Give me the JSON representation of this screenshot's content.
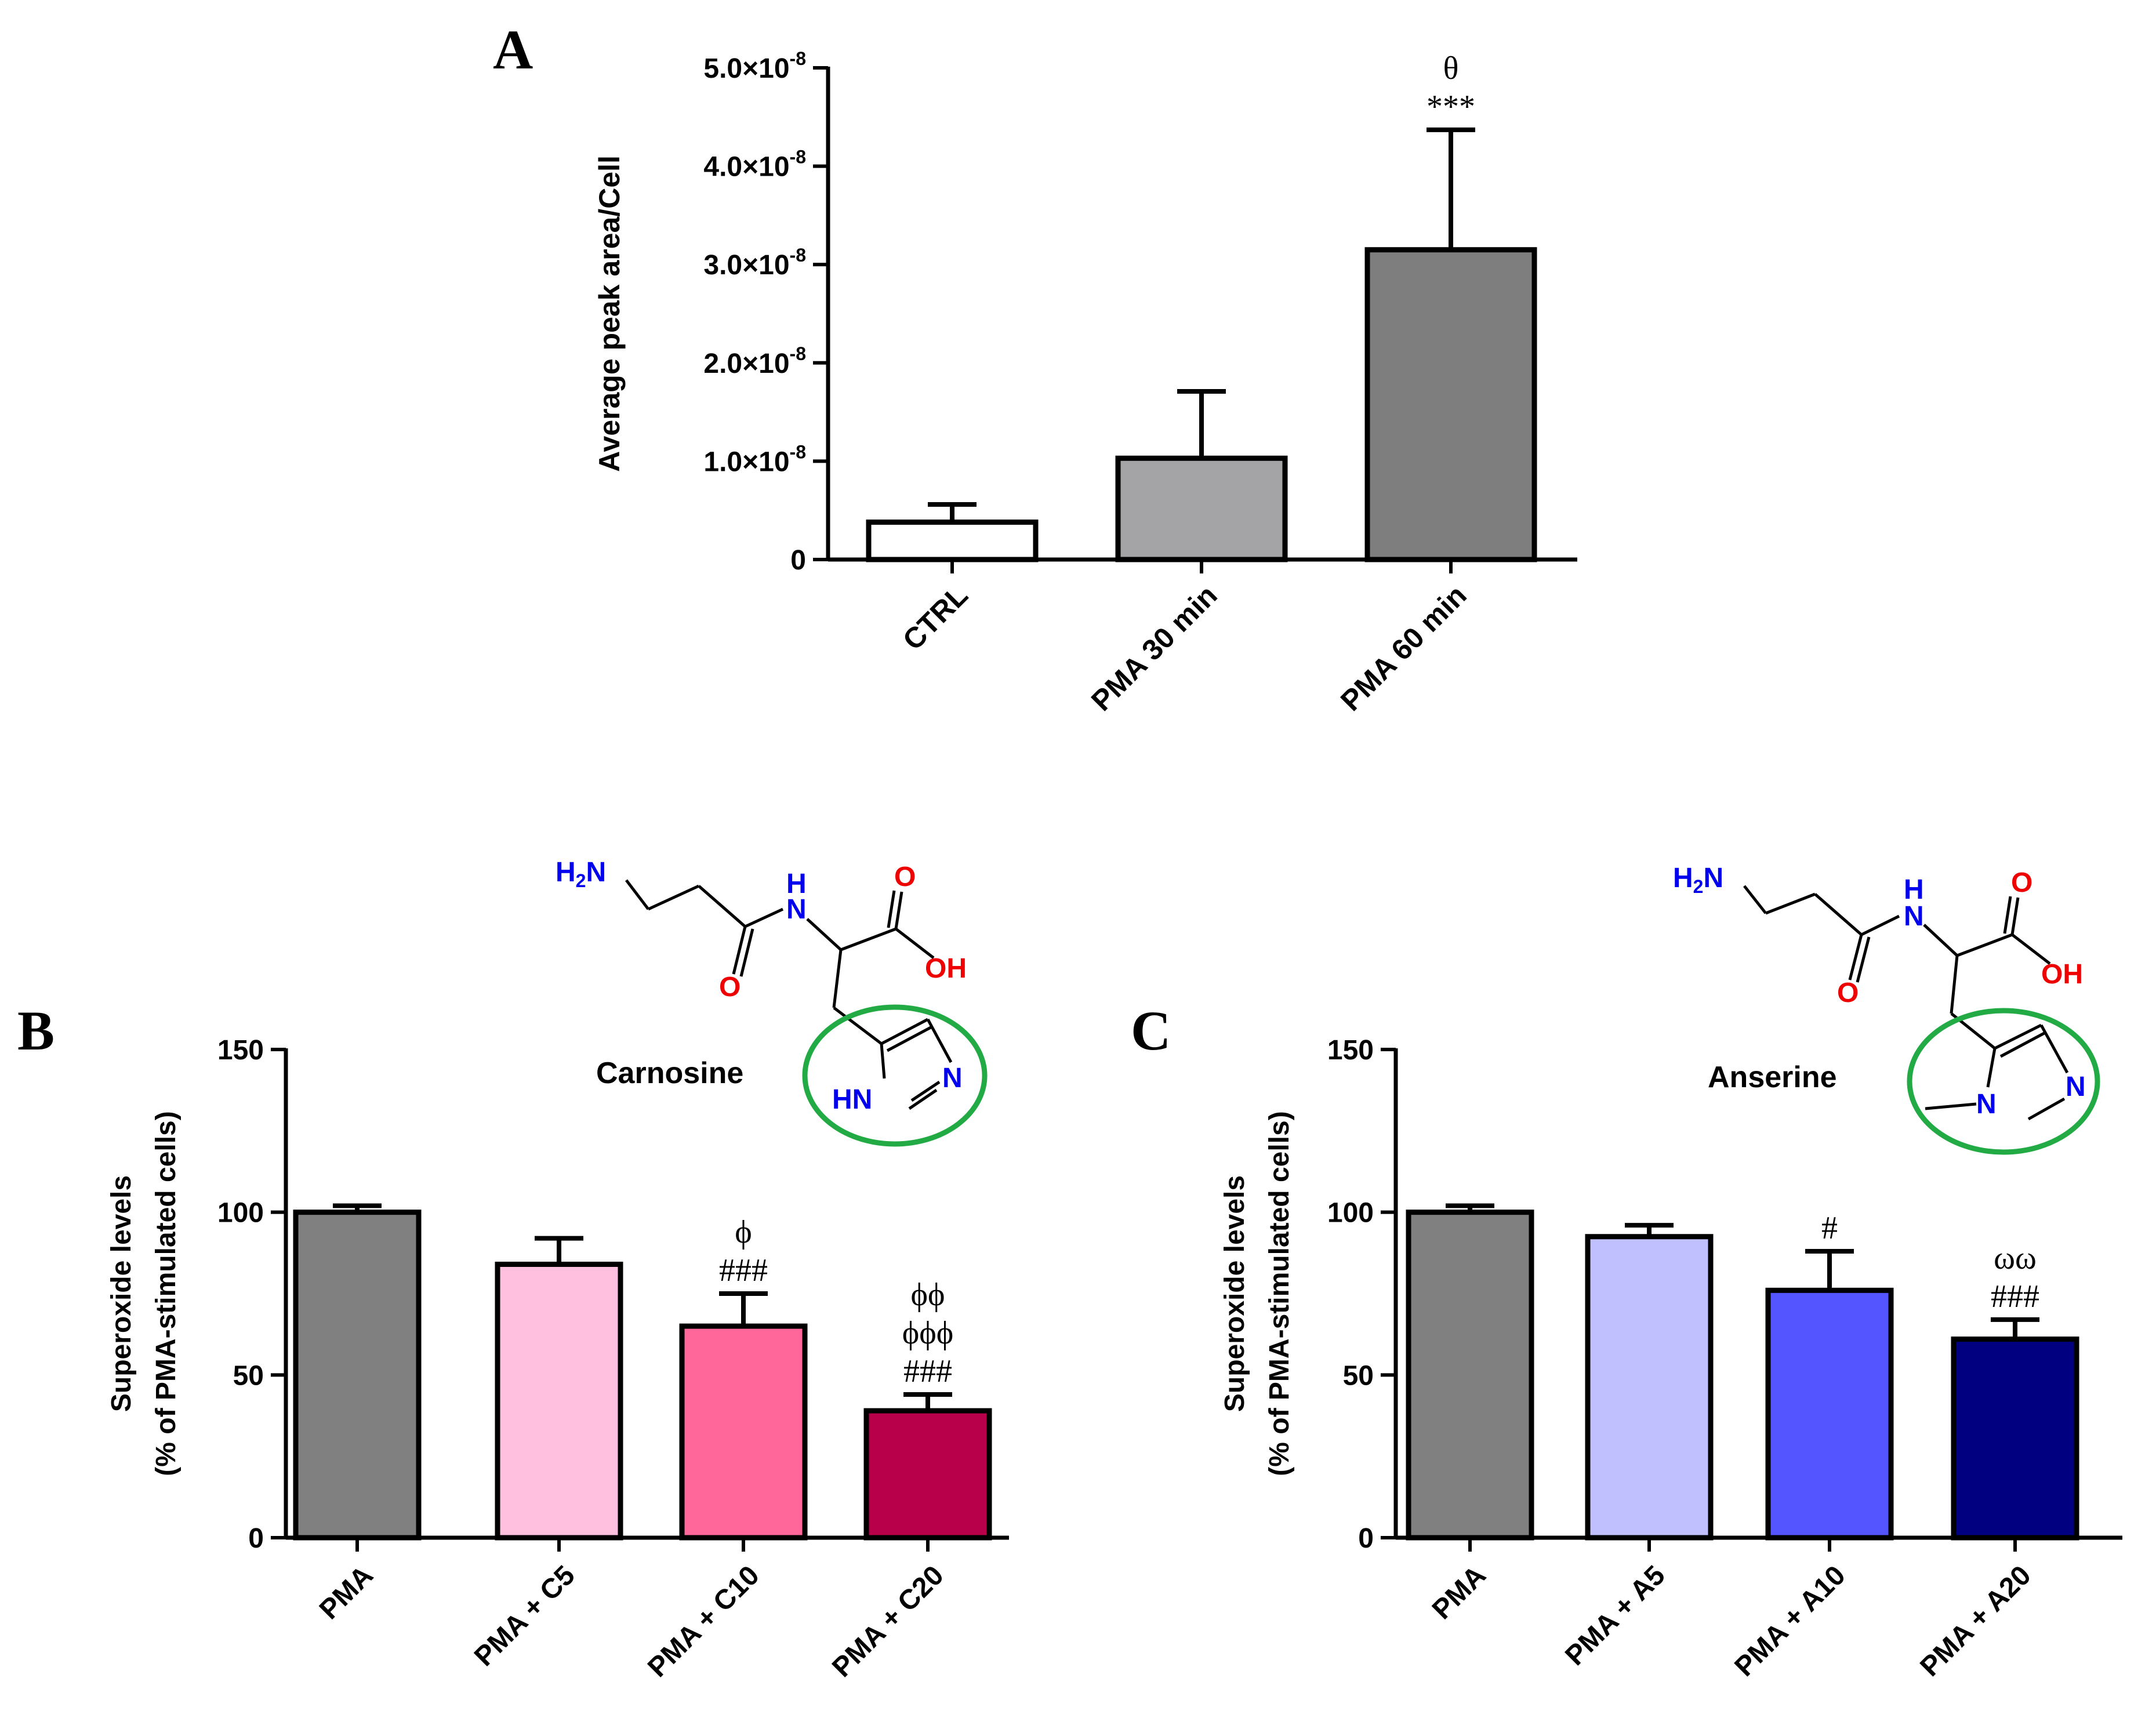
{
  "chart_data": [
    {
      "panel_label": "A",
      "type": "bar",
      "ylabel": "Average peak area/Cell",
      "ylim": [
        0,
        5e-08
      ],
      "yticks": [
        {
          "value": 0,
          "label": "0",
          "exp": ""
        },
        {
          "value": 1e-08,
          "label": "1.0×10",
          "exp": "-8"
        },
        {
          "value": 2e-08,
          "label": "2.0×10",
          "exp": "-8"
        },
        {
          "value": 3e-08,
          "label": "3.0×10",
          "exp": "-8"
        },
        {
          "value": 4e-08,
          "label": "4.0×10",
          "exp": "-8"
        },
        {
          "value": 5e-08,
          "label": "5.0×10",
          "exp": "-8"
        }
      ],
      "categories": [
        "CTRL",
        "PMA 30 min",
        "PMA 60 min"
      ],
      "values": [
        3.8e-09,
        1.03e-08,
        3.15e-08
      ],
      "errors": [
        1.8e-09,
        6.8e-09,
        1.22e-08
      ],
      "colors": [
        "#ffffff",
        "#a4a4a6",
        "#7e7e7e"
      ],
      "annotations": [
        [],
        [],
        [
          "θ",
          "***"
        ]
      ]
    },
    {
      "panel_label": "B",
      "type": "bar",
      "ylabel": [
        "Superoxide levels",
        "(% of PMA-stimulated cells)"
      ],
      "ylim": [
        0,
        150
      ],
      "yticks": [
        {
          "value": 0,
          "label": "0"
        },
        {
          "value": 50,
          "label": "50"
        },
        {
          "value": 100,
          "label": "100"
        },
        {
          "value": 150,
          "label": "150"
        }
      ],
      "categories": [
        "PMA",
        "PMA + C5",
        "PMA + C10",
        "PMA + C20"
      ],
      "values": [
        100,
        84,
        65,
        39
      ],
      "errors": [
        2,
        8,
        10,
        5
      ],
      "colors": [
        "#808080",
        "#ffc0e0",
        "#ff6699",
        "#b8004a"
      ],
      "annotations": [
        [],
        [],
        [
          "ϕ",
          "###"
        ],
        [
          "ϕϕ",
          "ϕϕϕ",
          "###"
        ]
      ],
      "molecule": "Carnosine"
    },
    {
      "panel_label": "C",
      "type": "bar",
      "ylabel": [
        "Superoxide levels",
        "(% of PMA-stimulated cells)"
      ],
      "ylim": [
        0,
        150
      ],
      "yticks": [
        {
          "value": 0,
          "label": "0"
        },
        {
          "value": 50,
          "label": "50"
        },
        {
          "value": 100,
          "label": "100"
        },
        {
          "value": 150,
          "label": "150"
        }
      ],
      "categories": [
        "PMA",
        "PMA + A5",
        "PMA + A10",
        "PMA + A20"
      ],
      "values": [
        100,
        92.5,
        76,
        61
      ],
      "errors": [
        2,
        3.5,
        12,
        6
      ],
      "colors": [
        "#808080",
        "#c0c0ff",
        "#5555ff",
        "#000080"
      ],
      "annotations": [
        [],
        [],
        [
          "#"
        ],
        [
          "ωω",
          "###"
        ]
      ],
      "molecule": "Anserine"
    }
  ],
  "chemistry": {
    "h2n": "H",
    "h2n_sub": "2",
    "h2n_tail": "N",
    "nh_n": "N",
    "nh_h": "H",
    "o": "O",
    "oh": "OH",
    "hn": "HN",
    "n": "N"
  },
  "colors": {
    "nitrogen": "#0000ee",
    "oxygen": "#ee0000",
    "ring_circle": "#22aa44"
  }
}
